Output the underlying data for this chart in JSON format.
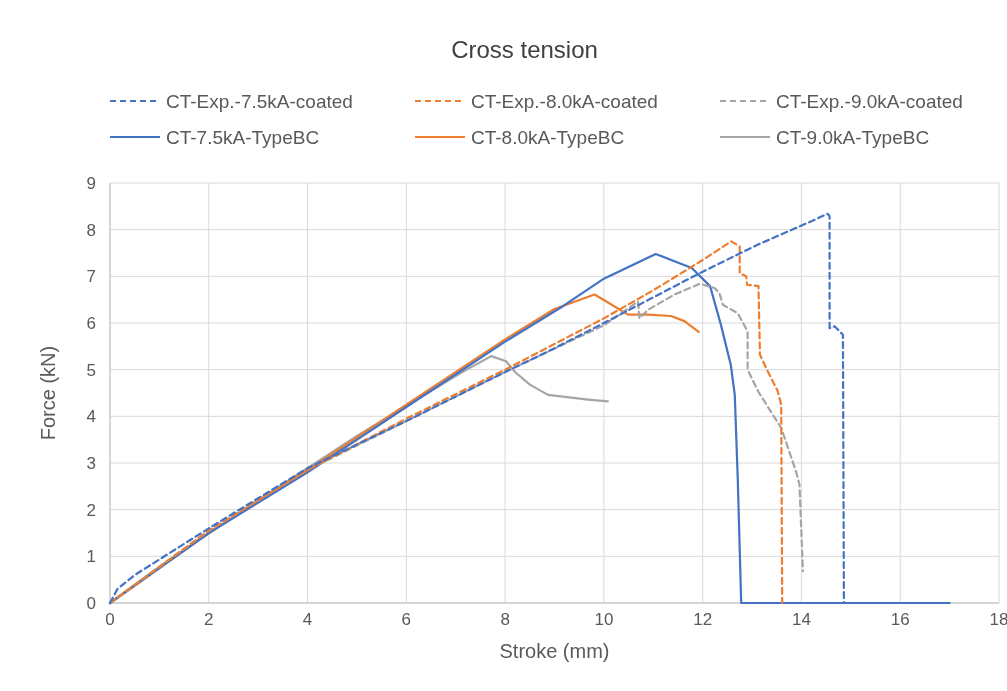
{
  "chart_data": {
    "type": "line",
    "title": "Cross tension",
    "xlabel": "Stroke (mm)",
    "ylabel": "Force (kN)",
    "xlim": [
      0,
      18
    ],
    "xticks": [
      0,
      2,
      4,
      6,
      8,
      10,
      12,
      14,
      16,
      18
    ],
    "ylim": [
      0,
      9
    ],
    "yticks": [
      0,
      1,
      2,
      3,
      4,
      5,
      6,
      7,
      8,
      9
    ],
    "grid": true,
    "legend": "top",
    "series": [
      {
        "name": "CT-Exp.-7.5kA-coated",
        "color": "#4472c4",
        "line_style": "dashed",
        "x": [
          0,
          0.15,
          0.5,
          2,
          4,
          6,
          8,
          8.87,
          10,
          12,
          13.12,
          14.2,
          14.53,
          14.57,
          14.57,
          14.67,
          14.84,
          14.86
        ],
        "values": [
          0,
          0.3,
          0.6,
          1.6,
          2.89,
          3.9,
          4.95,
          5.39,
          6.0,
          7.1,
          7.68,
          8.18,
          8.34,
          8.29,
          5.89,
          5.93,
          5.75,
          0
        ]
      },
      {
        "name": "CT-Exp.-8.0kA-coated",
        "color": "#ed7d31",
        "line_style": "dashed",
        "x": [
          0,
          2,
          4,
          6,
          8,
          10,
          11,
          12,
          12.58,
          12.75,
          12.75,
          12.88,
          12.9,
          13.13,
          13.16,
          13.32,
          13.52,
          13.59,
          13.61
        ],
        "values": [
          0,
          1.55,
          2.85,
          3.95,
          5.0,
          6.1,
          6.7,
          7.35,
          7.75,
          7.64,
          7.07,
          7.0,
          6.82,
          6.79,
          5.32,
          4.96,
          4.54,
          4.25,
          0
        ]
      },
      {
        "name": "CT-Exp.-9.0kA-coated",
        "color": "#a5a5a5",
        "line_style": "dashed",
        "x": [
          0,
          2,
          4,
          6,
          8,
          10,
          10.69,
          10.72,
          10.89,
          11.43,
          11.94,
          12.24,
          12.34,
          12.41,
          12.71,
          12.91,
          12.91,
          13.12,
          13.59,
          13.89,
          13.96,
          14.03
        ],
        "values": [
          0,
          1.55,
          2.85,
          3.9,
          4.95,
          5.95,
          6.46,
          6.1,
          6.28,
          6.61,
          6.84,
          6.75,
          6.64,
          6.39,
          6.21,
          5.82,
          5.0,
          4.54,
          3.75,
          2.82,
          2.54,
          0.68
        ]
      },
      {
        "name": "CT-7.5kA-TypeBC",
        "color": "#4472c4",
        "line_style": "solid",
        "x": [
          0,
          2,
          4,
          6,
          8,
          9.17,
          10,
          11.05,
          11.78,
          12.15,
          12.37,
          12.57,
          12.65,
          12.71,
          12.78,
          17.0
        ],
        "values": [
          0,
          1.5,
          2.8,
          4.2,
          5.6,
          6.36,
          6.95,
          7.48,
          7.18,
          6.79,
          5.96,
          5.1,
          4.46,
          2.68,
          0,
          0
        ]
      },
      {
        "name": "CT-8.0kA-TypeBC",
        "color": "#ed7d31",
        "line_style": "solid",
        "x": [
          0,
          2,
          4,
          6,
          8,
          9,
          9.81,
          10.05,
          10.49,
          10.89,
          11.36,
          11.63,
          11.92
        ],
        "values": [
          0,
          1.5,
          2.85,
          4.25,
          5.65,
          6.3,
          6.61,
          6.46,
          6.18,
          6.18,
          6.15,
          6.04,
          5.81
        ]
      },
      {
        "name": "CT-9.0kA-TypeBC",
        "color": "#a5a5a5",
        "line_style": "solid",
        "x": [
          0,
          1,
          3,
          5,
          7.15,
          7.72,
          8.02,
          8.19,
          8.5,
          8.87,
          9.68,
          10.08
        ],
        "values": [
          0,
          0.78,
          2.2,
          3.58,
          4.96,
          5.29,
          5.18,
          4.96,
          4.68,
          4.46,
          4.36,
          4.32
        ]
      }
    ]
  }
}
